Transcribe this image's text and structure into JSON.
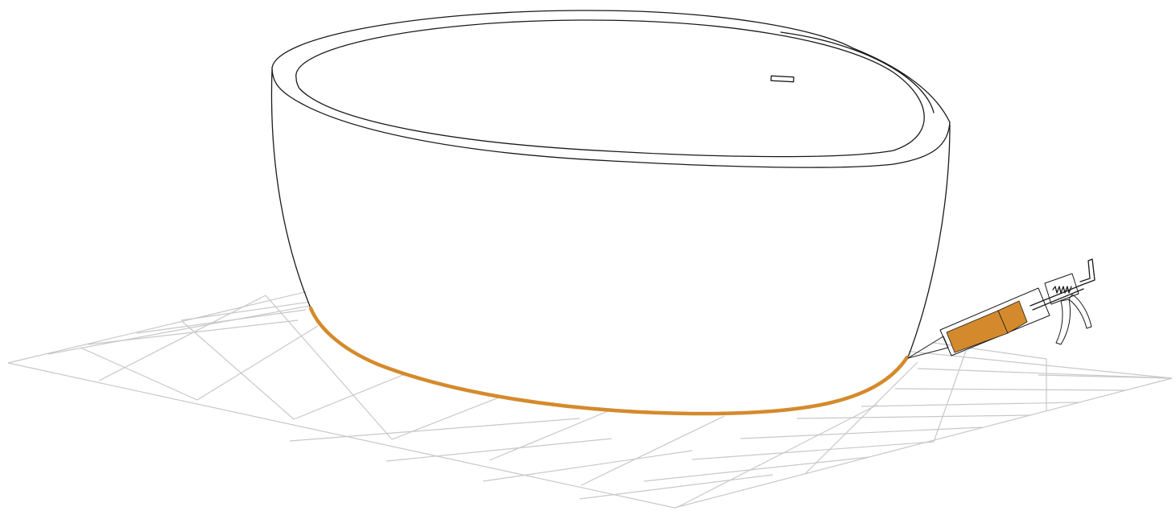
{
  "illustration": {
    "subject": "freestanding-oval-bathtub",
    "tool": "caulking-gun",
    "colors": {
      "background": "#ffffff",
      "outline": "#1a1a1a",
      "grid": "#c8c8c8",
      "sealant": "#d48a2c",
      "cartridge": "#d48a2c"
    }
  }
}
